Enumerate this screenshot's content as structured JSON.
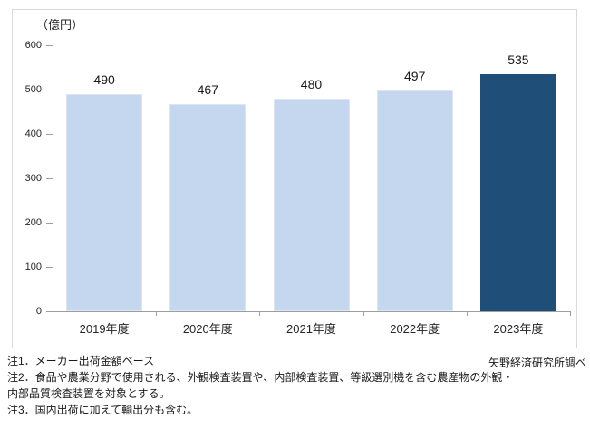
{
  "chart_data": {
    "type": "bar",
    "title": "",
    "unit_label": "（億円）",
    "categories": [
      "2019年度",
      "2020年度",
      "2021年度",
      "2022年度",
      "2023年度"
    ],
    "values": [
      490,
      467,
      480,
      497,
      535
    ],
    "highlight_index": 4,
    "ylim": [
      0,
      600
    ],
    "ytick_step": 100,
    "yticks": [
      0,
      100,
      200,
      300,
      400,
      500,
      600
    ],
    "grid": "off",
    "legend_position": "none",
    "data_labels": [
      "490",
      "467",
      "480",
      "497",
      "535"
    ],
    "colors": {
      "bar_fill": "#c5d7ee",
      "bar_border": "#dde7f4",
      "bar_highlight_fill": "#1f4e79",
      "axis": "#9d9d9d",
      "frame_border": "#d9d9d9",
      "text": "#1a1a1a"
    }
  },
  "notes": {
    "line1": "注1．メーカー出荷金額ベース",
    "line2": "注2．食品や農業分野で使用される、外観検査装置や、内部検査装置、等級選別機を含む農産物の外観・",
    "line3": "内部品質検査装置を対象とする。",
    "line4": "注3．国内出荷に加えて輸出分も含む。"
  },
  "source": "矢野経済研究所調べ"
}
